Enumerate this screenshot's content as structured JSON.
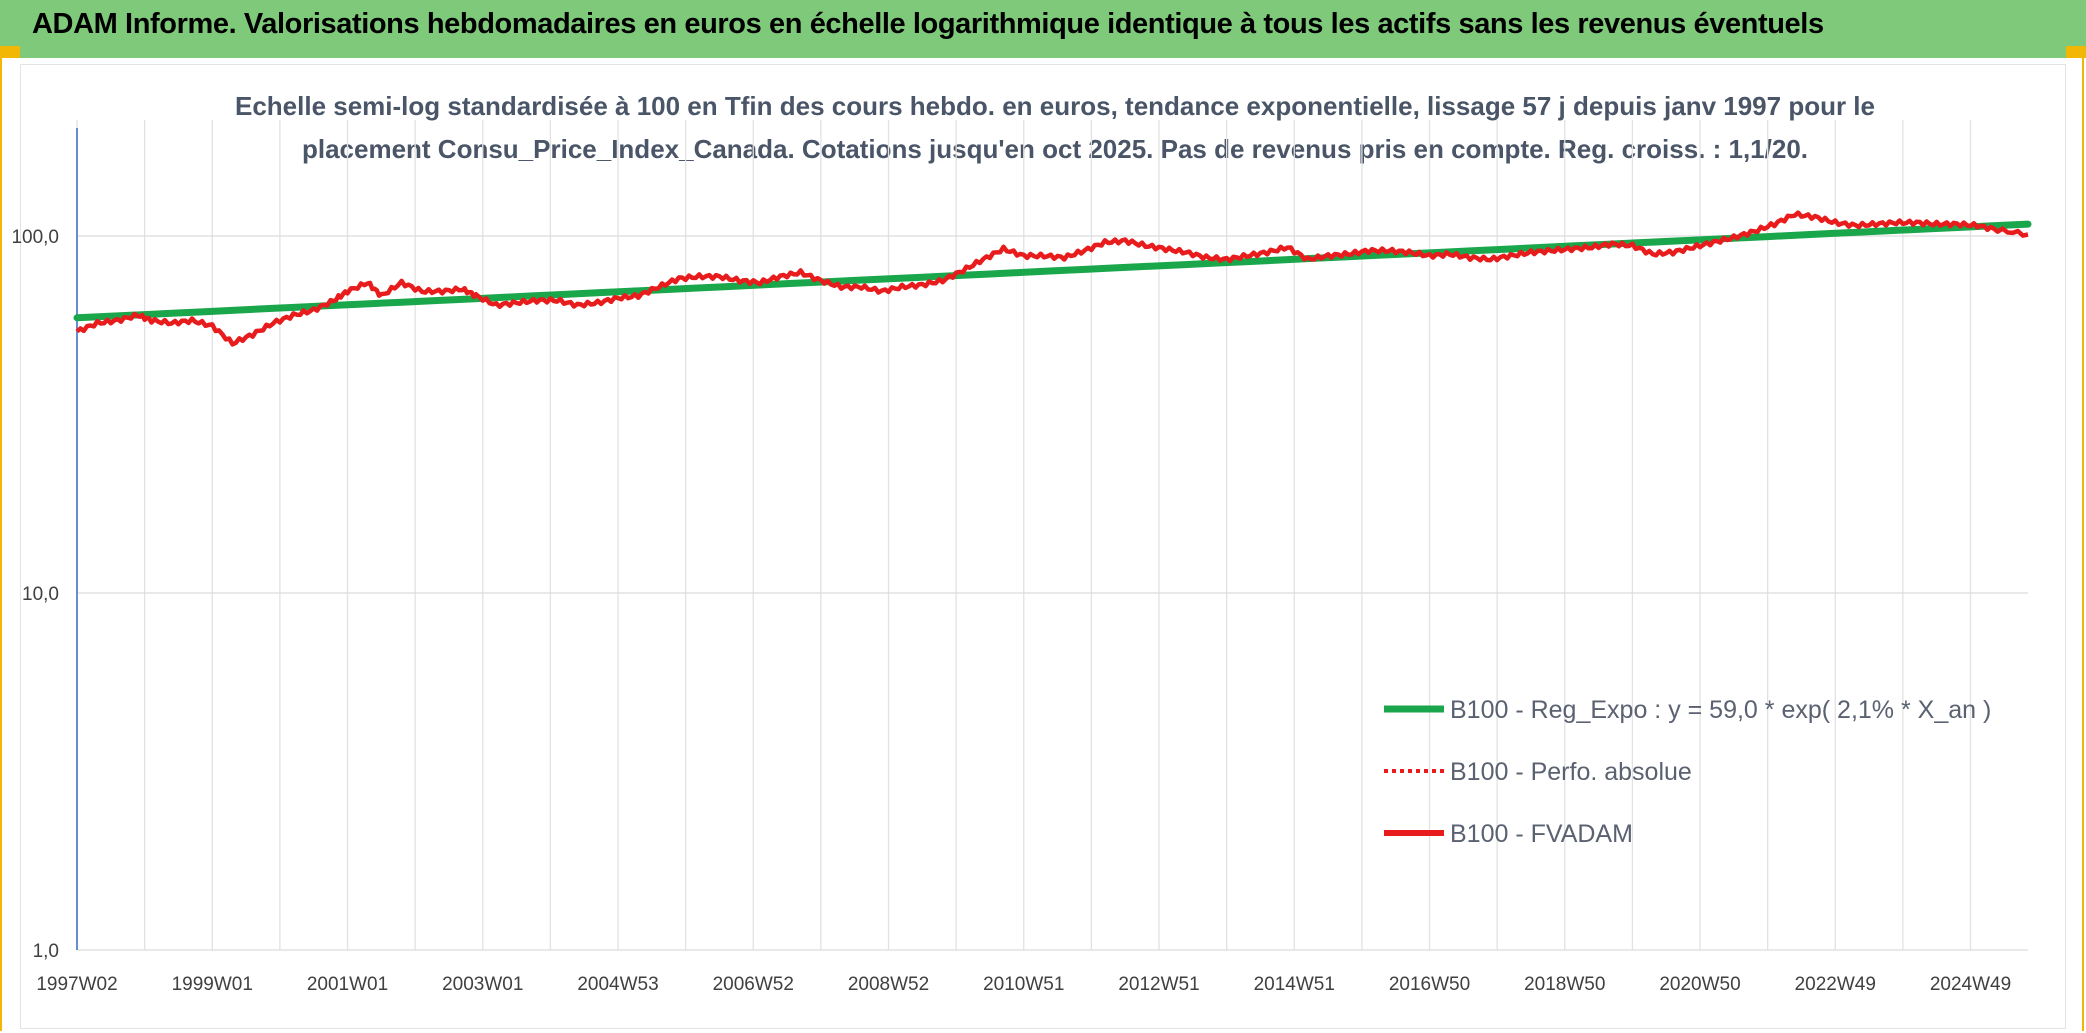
{
  "header": {
    "title": "ADAM Informe. Valorisations hebdomadaires en euros en échelle logarithmique identique à tous les actifs sans les revenus éventuels"
  },
  "colors": {
    "banner": "#7fc97a",
    "accent": "#f2b705",
    "trend": "#1aa64b",
    "fvadam": "#e81c1c",
    "perf": "#e81c1c"
  },
  "chart_data": {
    "type": "line",
    "title_line1": "Echelle semi-log standardisée à 100 en Tfin des cours hebdo. en euros, tendance exponentielle, lissage 57 j depuis janv 1997 pour le",
    "title_line2": "placement Consu_Price_Index_Canada. Cotations jusqu'en oct 2025. Pas de revenus pris en compte. Reg. croiss. : 1,1/20.",
    "y_scale": "log",
    "ylim": [
      1,
      160
    ],
    "y_ticks": [
      {
        "value": 1,
        "label": "1,0"
      },
      {
        "value": 10,
        "label": "10,0"
      },
      {
        "value": 100,
        "label": "100,0"
      }
    ],
    "xlim": [
      1997.0,
      2025.85
    ],
    "x_ticks": [
      {
        "x": 1997.0,
        "label": "1997W02"
      },
      {
        "x": 1999.0,
        "label": "1999W01"
      },
      {
        "x": 2001.0,
        "label": "2001W01"
      },
      {
        "x": 2003.0,
        "label": "2003W01"
      },
      {
        "x": 2005.0,
        "label": "2004W53"
      },
      {
        "x": 2007.0,
        "label": "2006W52"
      },
      {
        "x": 2009.0,
        "label": "2008W52"
      },
      {
        "x": 2011.0,
        "label": "2010W51"
      },
      {
        "x": 2013.0,
        "label": "2012W51"
      },
      {
        "x": 2015.0,
        "label": "2014W51"
      },
      {
        "x": 2017.0,
        "label": "2016W50"
      },
      {
        "x": 2019.0,
        "label": "2018W50"
      },
      {
        "x": 2021.0,
        "label": "2020W50"
      },
      {
        "x": 2023.0,
        "label": "2022W49"
      },
      {
        "x": 2025.0,
        "label": "2024W49"
      }
    ],
    "grid": "vertical and horizontal",
    "legend_position": "lower-right",
    "series": [
      {
        "name": "B100 - Reg_Expo : y = 59,0 * exp( 2,1% *  X_an )",
        "style": "thick-solid",
        "color": "#1aa64b",
        "x": [
          1997.0,
          2025.85
        ],
        "y": [
          59.0,
          108.0
        ]
      },
      {
        "name": "B100 - Perfo. absolue",
        "style": "dotted",
        "color": "#e81c1c",
        "x": [],
        "y": []
      },
      {
        "name": "B100 - FVADAM",
        "style": "solid",
        "color": "#e81c1c",
        "x": [
          1997.0,
          1997.3,
          1997.6,
          1997.9,
          1998.1,
          1998.4,
          1998.7,
          1999.0,
          1999.3,
          1999.6,
          1999.9,
          2000.2,
          2000.5,
          2000.8,
          2001.0,
          2001.3,
          2001.5,
          2001.8,
          2002.1,
          2002.4,
          2002.7,
          2002.9,
          2003.2,
          2003.5,
          2003.8,
          2004.1,
          2004.4,
          2004.7,
          2005.0,
          2005.3,
          2005.6,
          2005.9,
          2006.2,
          2006.5,
          2006.8,
          2007.1,
          2007.4,
          2007.7,
          2008.0,
          2008.3,
          2008.6,
          2008.9,
          2009.2,
          2009.5,
          2009.8,
          2010.1,
          2010.4,
          2010.7,
          2011.0,
          2011.3,
          2011.6,
          2011.9,
          2012.2,
          2012.5,
          2012.8,
          2013.1,
          2013.4,
          2013.7,
          2014.0,
          2014.3,
          2014.6,
          2014.9,
          2015.2,
          2015.5,
          2015.8,
          2016.1,
          2016.4,
          2016.7,
          2017.0,
          2017.3,
          2017.6,
          2017.9,
          2018.2,
          2018.5,
          2018.8,
          2019.1,
          2019.4,
          2019.7,
          2020.0,
          2020.3,
          2020.6,
          2020.9,
          2021.2,
          2021.5,
          2021.8,
          2022.1,
          2022.4,
          2022.7,
          2023.0,
          2023.3,
          2023.6,
          2023.9,
          2024.2,
          2024.5,
          2024.8,
          2025.1,
          2025.4,
          2025.85
        ],
        "y": [
          54,
          57,
          58,
          60,
          58,
          57,
          58,
          56,
          50,
          53,
          57,
          60,
          62,
          66,
          70,
          74,
          68,
          74,
          70,
          70,
          71,
          68,
          64,
          65,
          66,
          66,
          64,
          65,
          67,
          68,
          72,
          76,
          77,
          77,
          75,
          74,
          77,
          79,
          75,
          72,
          72,
          70,
          72,
          73,
          75,
          80,
          86,
          92,
          88,
          88,
          87,
          91,
          96,
          97,
          94,
          92,
          90,
          87,
          86,
          88,
          90,
          93,
          86,
          88,
          89,
          91,
          91,
          90,
          88,
          89,
          87,
          86,
          88,
          90,
          91,
          92,
          93,
          95,
          94,
          89,
          90,
          93,
          96,
          99,
          103,
          108,
          115,
          113,
          109,
          107,
          108,
          109,
          109,
          108,
          108,
          107,
          104,
          101
        ]
      }
    ]
  }
}
